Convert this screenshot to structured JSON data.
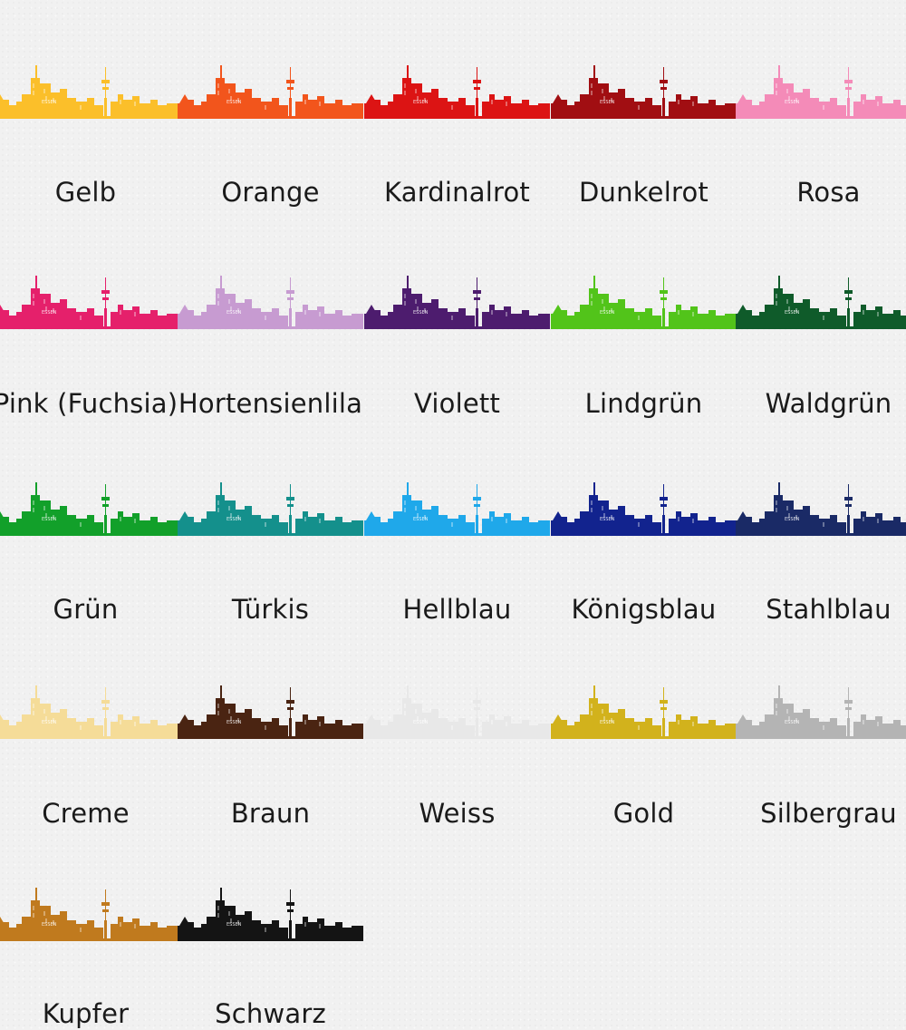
{
  "city_label": "ESSEN",
  "swatches": [
    {
      "name": "Gelb",
      "color": "#fbbf2a"
    },
    {
      "name": "Orange",
      "color": "#f2551c"
    },
    {
      "name": "Kardinalrot",
      "color": "#dc1414"
    },
    {
      "name": "Dunkelrot",
      "color": "#a10e12"
    },
    {
      "name": "Rosa",
      "color": "#f48bb8"
    },
    {
      "name": "Pink (Fuchsia)",
      "color": "#e5206b"
    },
    {
      "name": "Hortensienlila",
      "color": "#c79bd1"
    },
    {
      "name": "Violett",
      "color": "#4d1c6e"
    },
    {
      "name": "Lindgrün",
      "color": "#52c41a"
    },
    {
      "name": "Waldgrün",
      "color": "#0f5b2a"
    },
    {
      "name": "Grün",
      "color": "#12a02a"
    },
    {
      "name": "Türkis",
      "color": "#14908c"
    },
    {
      "name": "Hellblau",
      "color": "#1fa8ea"
    },
    {
      "name": "Königsblau",
      "color": "#12238e"
    },
    {
      "name": "Stahlblau",
      "color": "#1a2a66"
    },
    {
      "name": "Creme",
      "color": "#f5dc98"
    },
    {
      "name": "Braun",
      "color": "#4a2412"
    },
    {
      "name": "Weiss",
      "color": "#e8e8e8"
    },
    {
      "name": "Gold",
      "color": "#d2b21c"
    },
    {
      "name": "Silbergrau",
      "color": "#b4b4b4"
    },
    {
      "name": "Kupfer",
      "color": "#c07a1e"
    },
    {
      "name": "Schwarz",
      "color": "#141414"
    }
  ]
}
